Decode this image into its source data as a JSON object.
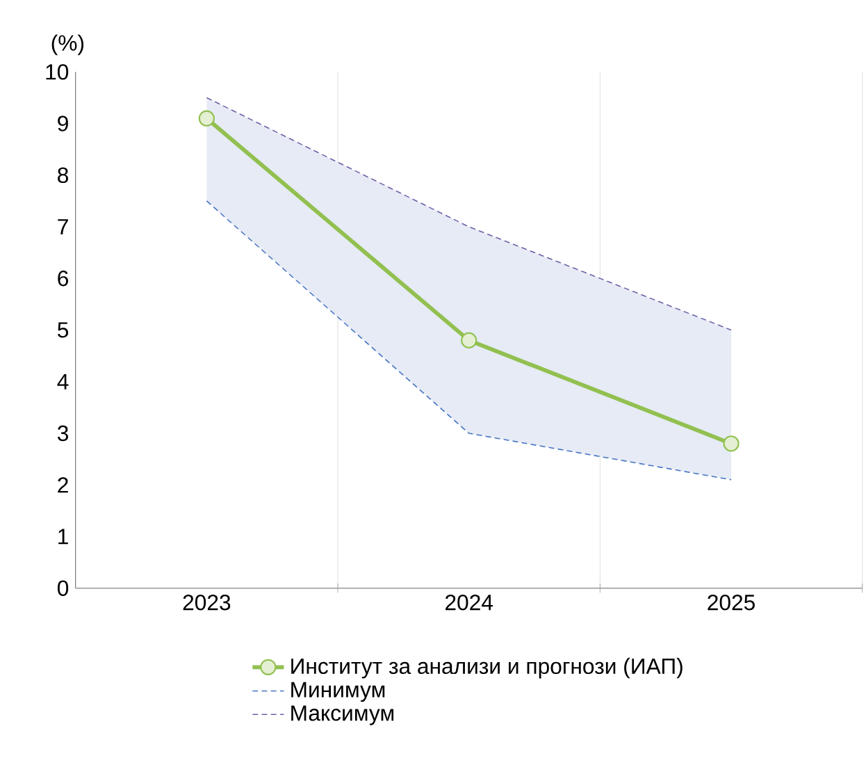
{
  "chart_data": {
    "type": "line",
    "ylabel": "(%)",
    "categories": [
      "2023",
      "2024",
      "2025"
    ],
    "series": [
      {
        "name": "Институт за анализи и прогнози (ИАП)",
        "color": "#92c050",
        "values": [
          9.1,
          4.8,
          2.8
        ],
        "marker": "circle",
        "line_style": "solid",
        "lower": [
          7.5,
          3.0,
          2.1
        ],
        "upper": [
          9.5,
          7.0,
          5.0
        ]
      },
      {
        "name": "Минимум",
        "color": "#4472c4",
        "values": [
          7.5,
          3.0,
          2.1
        ],
        "marker": "none",
        "line_style": "dashed"
      },
      {
        "name": "Максимум",
        "color": "#7060a8",
        "values": [
          9.5,
          7.0,
          5.0
        ],
        "marker": "none",
        "line_style": "dashed"
      }
    ],
    "ylim": [
      0,
      10
    ],
    "yticks": [
      0,
      1,
      2,
      3,
      4,
      5,
      6,
      7,
      8,
      9,
      10
    ],
    "grid": "x",
    "legend": "bottom"
  }
}
